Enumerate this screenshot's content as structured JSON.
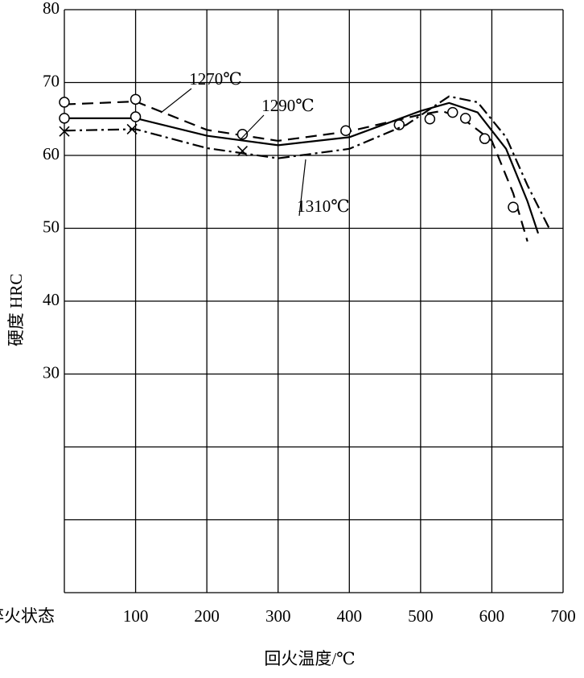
{
  "chart_data": {
    "type": "line",
    "xlabel": "回火温度/℃",
    "ylabel": "硬度 HRC",
    "xlim": [
      0,
      700
    ],
    "ylim": [
      0,
      80
    ],
    "xticks": [
      {
        "value": 0,
        "label": "淬火状态"
      },
      100,
      200,
      300,
      400,
      500,
      600,
      700
    ],
    "yticks": [
      30,
      40,
      50,
      60,
      70,
      80
    ],
    "ygrid": [
      0,
      10,
      20,
      30,
      40,
      50,
      60,
      70,
      80
    ],
    "grid": true,
    "series": [
      {
        "name": "1270℃",
        "color": "#000000",
        "line_style": "dashed",
        "marker": "circle",
        "x": [
          0,
          100,
          200,
          300,
          400,
          500,
          530,
          560,
          600,
          630,
          650
        ],
        "values": [
          67.0,
          67.4,
          63.5,
          62.0,
          63.3,
          65.6,
          66.1,
          65.0,
          62.0,
          54.8,
          48.2
        ],
        "points": {
          "x": [
            0,
            100,
            250,
            395,
            470,
            513,
            545,
            563,
            590,
            630
          ],
          "values": [
            67.3,
            67.7,
            62.9,
            63.4,
            64.2,
            65.0,
            65.9,
            65.1,
            62.3,
            52.9
          ]
        }
      },
      {
        "name": "1290℃",
        "color": "#000000",
        "line_style": "solid",
        "marker": "circle",
        "x": [
          0,
          100,
          200,
          300,
          400,
          500,
          540,
          580,
          620,
          650,
          665
        ],
        "values": [
          65.1,
          65.1,
          62.7,
          61.4,
          62.5,
          66.1,
          67.2,
          65.9,
          60.9,
          53.7,
          49.3
        ],
        "points": {
          "x": [
            0,
            100
          ],
          "values": [
            65.1,
            65.3
          ]
        }
      },
      {
        "name": "1310℃",
        "color": "#000000",
        "line_style": "dashdot",
        "marker": "x",
        "x": [
          0,
          100,
          200,
          300,
          400,
          480,
          540,
          580,
          620,
          650,
          680
        ],
        "values": [
          63.4,
          63.6,
          61.0,
          59.6,
          60.9,
          64.2,
          68.1,
          67.3,
          62.5,
          55.9,
          50.1
        ],
        "points": {
          "x": [
            0,
            95,
            250
          ],
          "values": [
            63.3,
            63.6,
            60.6
          ]
        }
      }
    ]
  }
}
